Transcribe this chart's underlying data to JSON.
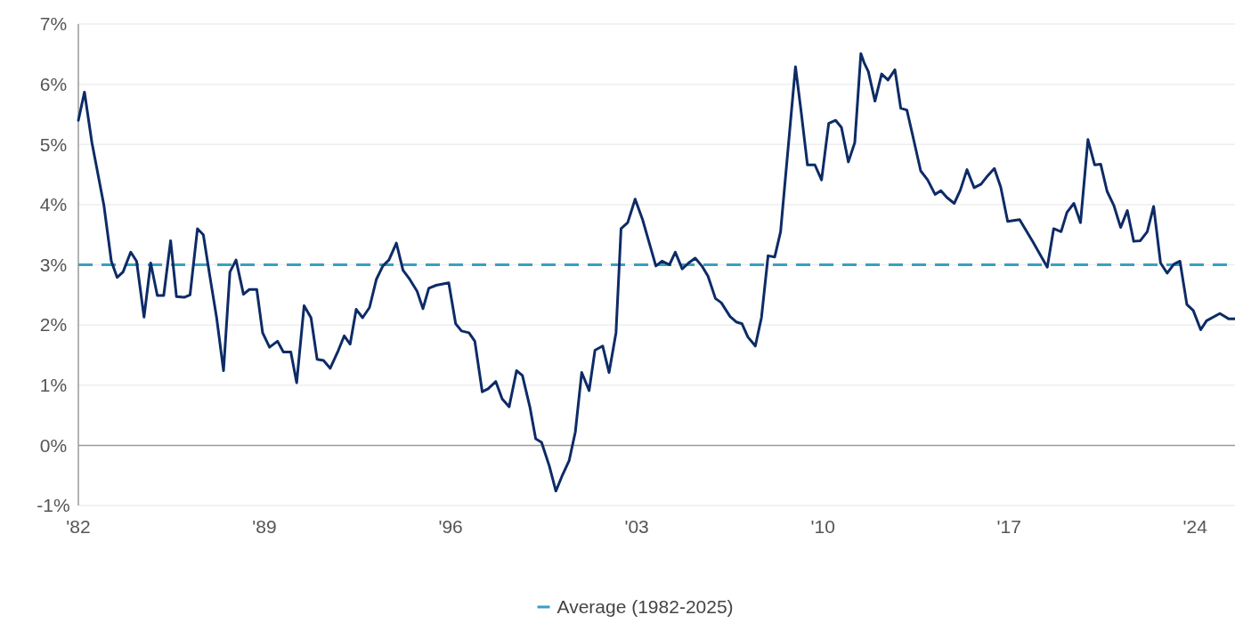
{
  "chart_data": {
    "type": "line",
    "xlim": [
      1982,
      2025.5
    ],
    "xticks": [
      {
        "value": 1982,
        "label": "'82"
      },
      {
        "value": 1989,
        "label": "'89"
      },
      {
        "value": 1996,
        "label": "'96"
      },
      {
        "value": 2003,
        "label": "'03"
      },
      {
        "value": 2010,
        "label": "'10"
      },
      {
        "value": 2017,
        "label": "'17"
      },
      {
        "value": 2024,
        "label": "'24"
      }
    ],
    "ylim": [
      -1,
      7
    ],
    "yticks": [
      {
        "value": -1,
        "label": "-1%"
      },
      {
        "value": 0,
        "label": "0%"
      },
      {
        "value": 1,
        "label": "1%"
      },
      {
        "value": 2,
        "label": "2%"
      },
      {
        "value": 3,
        "label": "3%"
      },
      {
        "value": 4,
        "label": "4%"
      },
      {
        "value": 5,
        "label": "5%"
      },
      {
        "value": 6,
        "label": "6%"
      },
      {
        "value": 7,
        "label": "7%"
      }
    ],
    "grid": "y",
    "legend": "bottom",
    "line_style": "solid",
    "marker": "none",
    "ref_lines": [
      {
        "axis": "y",
        "value": 3,
        "label": "Average (1982-2025)",
        "color": "#3a9fbf",
        "line_style": "dashed"
      }
    ],
    "series": [
      {
        "color": "#0d2b66",
        "x": [
          1982.0,
          1982.23,
          1982.51,
          1982.96,
          1983.24,
          1983.46,
          1983.68,
          1983.97,
          1984.19,
          1984.47,
          1984.72,
          1984.97,
          1985.21,
          1985.47,
          1985.69,
          1985.98,
          1986.2,
          1986.48,
          1986.7,
          1986.92,
          1987.2,
          1987.46,
          1987.7,
          1987.93,
          1988.21,
          1988.43,
          1988.71,
          1988.93,
          1989.19,
          1989.49,
          1989.71,
          1989.99,
          1990.21,
          1990.49,
          1990.75,
          1990.98,
          1991.22,
          1991.47,
          1991.78,
          1992.0,
          1992.22,
          1992.45,
          1992.69,
          1992.95,
          1993.21,
          1993.45,
          1993.68,
          1993.96,
          1994.21,
          1994.46,
          1994.74,
          1994.96,
          1995.18,
          1995.46,
          1995.93,
          1996.19,
          1996.41,
          1996.69,
          1996.91,
          1997.19,
          1997.41,
          1997.7,
          1997.94,
          1998.2,
          1998.48,
          1998.7,
          1998.98,
          1999.2,
          1999.42,
          1999.71,
          1999.96,
          2000.21,
          2000.46,
          2000.69,
          2000.93,
          2001.21,
          2001.43,
          2001.72,
          2001.96,
          2002.22,
          2002.41,
          2002.66,
          2002.94,
          2003.22,
          2003.72,
          2003.95,
          2004.23,
          2004.45,
          2004.71,
          2004.95,
          2005.2,
          2005.45,
          2005.68,
          2005.96,
          2006.18,
          2006.51,
          2006.74,
          2006.96,
          2007.18,
          2007.46,
          2007.69,
          2007.94,
          2008.19,
          2008.41,
          2008.63,
          2008.97,
          2009.19,
          2009.42,
          2009.7,
          2009.95,
          2010.22,
          2010.48,
          2010.7,
          2010.96,
          2011.2,
          2011.43,
          2011.55,
          2011.71,
          2011.96,
          2012.21,
          2012.45,
          2012.71,
          2012.93,
          2013.16,
          2013.44,
          2013.68,
          2013.94,
          2014.22,
          2014.44,
          2014.66,
          2014.94,
          2015.17,
          2015.42,
          2015.69,
          2015.95,
          2016.2,
          2016.45,
          2016.69,
          2016.95,
          2017.4,
          2017.9,
          2018.44,
          2018.68,
          2018.96,
          2019.18,
          2019.44,
          2019.69,
          2019.97,
          2020.22,
          2020.45,
          2020.69,
          2020.94,
          2021.2,
          2021.45,
          2021.69,
          2021.94,
          2022.2,
          2022.44,
          2022.7,
          2022.95,
          2023.2,
          2023.43,
          2023.69,
          2023.93,
          2024.21,
          2024.43,
          2024.93,
          2025.27,
          2025.5
        ],
        "values": [
          5.4,
          5.87,
          5.03,
          3.99,
          3.06,
          2.79,
          2.88,
          3.21,
          3.06,
          2.13,
          3.03,
          2.49,
          2.49,
          3.4,
          2.47,
          2.46,
          2.5,
          3.6,
          3.5,
          2.88,
          2.12,
          1.24,
          2.88,
          3.08,
          2.51,
          2.59,
          2.59,
          1.87,
          1.63,
          1.73,
          1.55,
          1.55,
          1.04,
          2.32,
          2.12,
          1.43,
          1.41,
          1.28,
          1.58,
          1.82,
          1.68,
          2.26,
          2.12,
          2.29,
          2.76,
          2.98,
          3.08,
          3.36,
          2.91,
          2.76,
          2.56,
          2.27,
          2.61,
          2.66,
          2.7,
          2.02,
          1.9,
          1.87,
          1.73,
          0.89,
          0.94,
          1.06,
          0.77,
          0.64,
          1.24,
          1.16,
          0.64,
          0.11,
          0.05,
          -0.34,
          -0.76,
          -0.49,
          -0.25,
          0.22,
          1.21,
          0.91,
          1.58,
          1.65,
          1.21,
          1.87,
          3.6,
          3.7,
          4.09,
          3.75,
          2.98,
          3.06,
          3.0,
          3.21,
          2.93,
          3.03,
          3.11,
          2.98,
          2.81,
          2.44,
          2.37,
          2.14,
          2.05,
          2.02,
          1.8,
          1.65,
          2.12,
          3.15,
          3.13,
          3.55,
          4.63,
          6.29,
          5.52,
          4.66,
          4.66,
          4.41,
          5.35,
          5.4,
          5.28,
          4.71,
          5.03,
          6.51,
          6.36,
          6.21,
          5.72,
          6.17,
          6.07,
          6.24,
          5.6,
          5.57,
          5.03,
          4.56,
          4.41,
          4.17,
          4.23,
          4.12,
          4.02,
          4.24,
          4.58,
          4.28,
          4.34,
          4.48,
          4.6,
          4.29,
          3.72,
          3.75,
          3.38,
          2.96,
          3.6,
          3.55,
          3.87,
          4.02,
          3.7,
          5.08,
          4.66,
          4.67,
          4.22,
          3.99,
          3.62,
          3.9,
          3.39,
          3.4,
          3.55,
          3.97,
          3.03,
          2.86,
          3.01,
          3.06,
          2.34,
          2.24,
          1.92,
          2.07,
          2.19,
          2.1,
          2.1
        ]
      }
    ]
  }
}
